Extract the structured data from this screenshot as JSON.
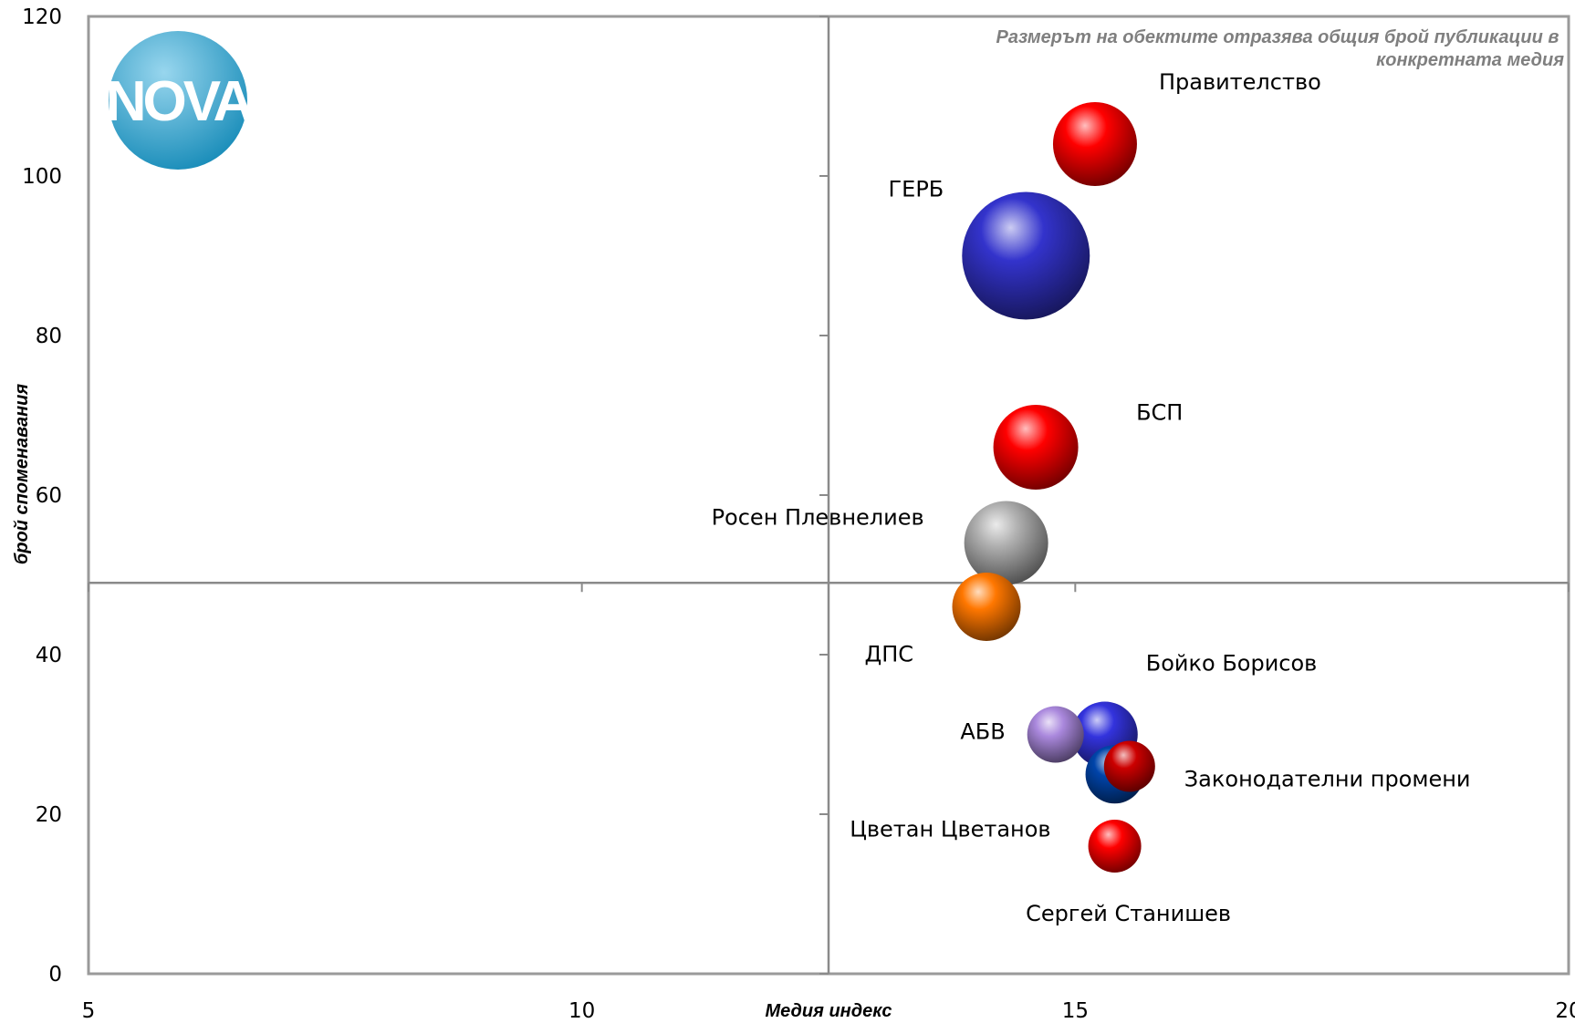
{
  "chart_data": {
    "type": "bubble",
    "title": "",
    "note": "Размерът на обектите отразява общия брой публикации в конкретната медия",
    "note_lines": [
      "Размерът на обектите отразява общия брой публикации в",
      "конкретната медия"
    ],
    "xlabel": "Медия индекс",
    "ylabel": "брой споменавания",
    "xlim": [
      5,
      20
    ],
    "ylim": [
      0,
      120
    ],
    "x_ticks": [
      5,
      10,
      15,
      20
    ],
    "y_ticks": [
      0,
      20,
      40,
      60,
      80,
      100,
      120
    ],
    "crosshair": {
      "x": 12.5,
      "y": 49
    },
    "grid": false,
    "legend": "none",
    "logo": {
      "text": "NOVA",
      "color": "#1aa3d9"
    },
    "points": [
      {
        "label": "Правителство",
        "x": 15.2,
        "y": 104,
        "size": 92,
        "color": "#ff0000"
      },
      {
        "label": "ГЕРБ",
        "x": 14.5,
        "y": 90,
        "size": 140,
        "color": "#3333cc"
      },
      {
        "label": "БСП",
        "x": 14.6,
        "y": 66,
        "size": 93,
        "color": "#ff0000"
      },
      {
        "label": "Росен Плевнелиев",
        "x": 14.3,
        "y": 54,
        "size": 92,
        "color": "#b0b0b0"
      },
      {
        "label": "ДПС",
        "x": 14.1,
        "y": 46,
        "size": 75,
        "color": "#ff7700"
      },
      {
        "label": "Бойко Борисов",
        "x": 15.3,
        "y": 30,
        "size": 72,
        "color": "#3333dd"
      },
      {
        "label": "Законодателни промени",
        "x": 15.55,
        "y": 26,
        "size": 56,
        "color": "#cc0000"
      },
      {
        "label": "АБВ",
        "x": 14.8,
        "y": 30,
        "size": 62,
        "color": "#aa88dd"
      },
      {
        "label": "Цветан Цветанов",
        "x": 15.4,
        "y": 25,
        "size": 64,
        "color": "#0044aa"
      },
      {
        "label": "Сергей Станишев",
        "x": 15.4,
        "y": 16,
        "size": 58,
        "color": "#ff0000"
      }
    ]
  }
}
